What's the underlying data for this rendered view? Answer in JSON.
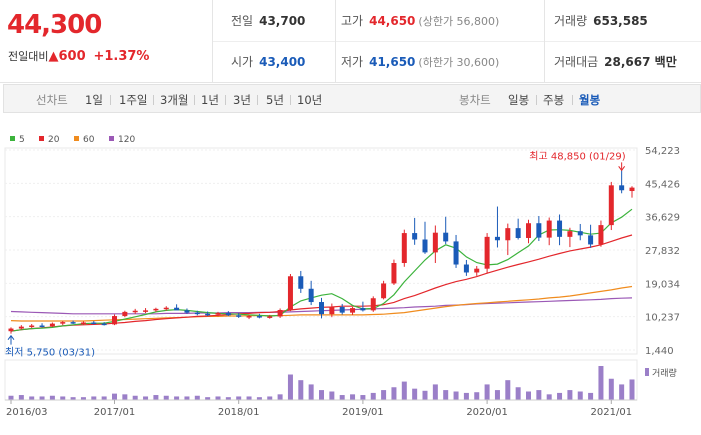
{
  "quote": {
    "price": "44,300",
    "change_label": "전일대비",
    "change_icon": "up-triangle-icon",
    "change_amount": "600",
    "change_percent": "+1.37%",
    "prev_close_label": "전일",
    "prev_close": "43,700",
    "high_label": "고가",
    "high": "44,650",
    "upper_limit": "(상한가 56,800)",
    "volume_label": "거래량",
    "volume": "653,585",
    "open_label": "시가",
    "open": "43,400",
    "low_label": "저가",
    "low": "41,650",
    "lower_limit": "(하한가 30,600)",
    "amount_label": "거래대금",
    "amount": "28,667 백만"
  },
  "toolbar": {
    "line_header": "선차트",
    "line_periods": [
      "1일",
      "1주일",
      "3개월",
      "1년",
      "3년",
      "5년",
      "10년"
    ],
    "candle_header": "봉차트",
    "candle_periods": [
      "일봉",
      "주봉",
      "월봉"
    ],
    "selected": "월봉"
  },
  "colors": {
    "up": "#e3272c",
    "down": "#1a5bb8",
    "ma5": "#3cb33c",
    "ma20": "#e3272c",
    "ma60": "#f08c1e",
    "ma120": "#9b59b6",
    "volume": "#9b7fc8"
  },
  "chart_data": {
    "type": "candlestick",
    "legend": [
      {
        "name": "5",
        "color": "#3cb33c"
      },
      {
        "name": "20",
        "color": "#e3272c"
      },
      {
        "name": "60",
        "color": "#f08c1e"
      },
      {
        "name": "120",
        "color": "#9b59b6"
      }
    ],
    "y_ticks": [
      "54,223",
      "45,426",
      "36,629",
      "27,832",
      "19,034",
      "10,237",
      "1,440"
    ],
    "ylim": [
      1440,
      54223
    ],
    "x_ticks": [
      "2016/03",
      "2017/01",
      "2018/01",
      "2019/01",
      "2020/01",
      "2021/01"
    ],
    "x_tick_month_index": [
      0,
      10,
      22,
      34,
      46,
      58
    ],
    "high_annotation": "최고 48,850 (01/29)",
    "low_annotation": "최저 5,750 (03/31)",
    "volume_label": "거래량",
    "ohlc": [
      [
        6400,
        7400,
        5750,
        7100
      ],
      [
        7100,
        8000,
        6800,
        7600
      ],
      [
        7600,
        8300,
        7200,
        7900
      ],
      [
        7900,
        8500,
        7400,
        7700
      ],
      [
        7700,
        8700,
        7500,
        8400
      ],
      [
        8400,
        9100,
        8000,
        8800
      ],
      [
        8800,
        9200,
        8300,
        8500
      ],
      [
        8500,
        9000,
        8100,
        8700
      ],
      [
        8700,
        9100,
        8200,
        8400
      ],
      [
        8400,
        8800,
        7900,
        8200
      ],
      [
        8200,
        10800,
        8000,
        10400
      ],
      [
        10400,
        11800,
        10100,
        11500
      ],
      [
        11500,
        12300,
        11000,
        11800
      ],
      [
        11800,
        12500,
        11200,
        11900
      ],
      [
        11900,
        12600,
        11500,
        12300
      ],
      [
        12300,
        13000,
        11800,
        12600
      ],
      [
        12600,
        13500,
        12000,
        11900
      ],
      [
        11900,
        12400,
        11000,
        11300
      ],
      [
        11300,
        11800,
        10600,
        11000
      ],
      [
        11000,
        11600,
        10400,
        10800
      ],
      [
        10800,
        11500,
        10300,
        11200
      ],
      [
        11200,
        11700,
        10400,
        10600
      ],
      [
        10600,
        11200,
        9900,
        10200
      ],
      [
        10200,
        10800,
        9600,
        10400
      ],
      [
        10400,
        11000,
        9800,
        10100
      ],
      [
        10100,
        10700,
        9700,
        10300
      ],
      [
        10300,
        12400,
        9900,
        12000
      ],
      [
        12000,
        21500,
        11700,
        20900
      ],
      [
        20900,
        22300,
        16500,
        17600
      ],
      [
        17600,
        19700,
        13300,
        14100
      ],
      [
        14100,
        15200,
        9800,
        10900
      ],
      [
        10900,
        13700,
        10100,
        12800
      ],
      [
        12800,
        13600,
        10800,
        11300
      ],
      [
        11300,
        12800,
        10700,
        12500
      ],
      [
        12500,
        14200,
        11600,
        11900
      ],
      [
        11900,
        15600,
        11500,
        15100
      ],
      [
        15100,
        19700,
        14800,
        19000
      ],
      [
        19000,
        25300,
        18600,
        24400
      ],
      [
        24400,
        33200,
        23400,
        32300
      ],
      [
        32300,
        36300,
        29200,
        30600
      ],
      [
        30600,
        35300,
        26800,
        27200
      ],
      [
        27200,
        34300,
        24400,
        32400
      ],
      [
        32400,
        36600,
        29400,
        30100
      ],
      [
        30100,
        31800,
        23100,
        24000
      ],
      [
        24000,
        25200,
        21000,
        21900
      ],
      [
        21900,
        23600,
        21000,
        22900
      ],
      [
        22900,
        32300,
        21600,
        31300
      ],
      [
        31300,
        39300,
        28500,
        30400
      ],
      [
        30400,
        34800,
        26500,
        33600
      ],
      [
        33600,
        36100,
        30600,
        31000
      ],
      [
        31000,
        35800,
        29600,
        34900
      ],
      [
        34900,
        36800,
        30200,
        31100
      ],
      [
        31100,
        36400,
        29100,
        35600
      ],
      [
        35600,
        37200,
        29100,
        31300
      ],
      [
        31300,
        33700,
        28600,
        32800
      ],
      [
        32800,
        34700,
        30400,
        31700
      ],
      [
        31700,
        34500,
        28400,
        29300
      ],
      [
        29300,
        35600,
        28700,
        34400
      ],
      [
        34400,
        45800,
        33100,
        44900
      ],
      [
        44900,
        48850,
        42800,
        43600
      ],
      [
        43400,
        44650,
        41650,
        44300
      ]
    ],
    "ma5": [
      6400,
      6800,
      7100,
      7200,
      7400,
      7800,
      8100,
      8400,
      8500,
      8500,
      9000,
      9600,
      10200,
      10800,
      11500,
      11900,
      12100,
      11900,
      11600,
      11300,
      11100,
      11000,
      10900,
      10700,
      10600,
      10400,
      10600,
      12800,
      14400,
      15200,
      15900,
      16300,
      15000,
      13200,
      12300,
      12400,
      13700,
      16000,
      19400,
      22300,
      25200,
      27600,
      29200,
      28300,
      26000,
      24500,
      23900,
      24100,
      25300,
      27100,
      28900,
      31800,
      33100,
      33200,
      33000,
      32500,
      32000,
      32300,
      35000,
      36500,
      38600
    ],
    "ma20": [
      6400,
      6800,
      7100,
      7300,
      7500,
      7800,
      8000,
      8100,
      8200,
      8300,
      8500,
      8700,
      9000,
      9200,
      9500,
      9700,
      9900,
      10100,
      10300,
      10400,
      10600,
      10800,
      11000,
      11100,
      11300,
      11400,
      11600,
      12000,
      12300,
      12500,
      12700,
      12800,
      13000,
      13000,
      13000,
      13100,
      13400,
      14000,
      15000,
      15800,
      16800,
      17800,
      18700,
      19500,
      20100,
      20800,
      21700,
      22500,
      23300,
      24000,
      24700,
      25400,
      26200,
      26900,
      27600,
      28100,
      28600,
      29200,
      30100,
      31000,
      31800
    ],
    "ma60": [
      9200,
      9100,
      9100,
      9100,
      9100,
      9100,
      9100,
      9100,
      9200,
      9300,
      9400,
      9500,
      9600,
      9700,
      9800,
      9900,
      10000,
      10100,
      10200,
      10300,
      10300,
      10400,
      10400,
      10500,
      10500,
      10500,
      10500,
      10600,
      10700,
      10700,
      10700,
      10700,
      10700,
      10700,
      10700,
      10800,
      10900,
      11100,
      11300,
      11700,
      12100,
      12500,
      12900,
      13200,
      13500,
      13700,
      13900,
      14100,
      14300,
      14500,
      14700,
      14900,
      15200,
      15400,
      15700,
      16100,
      16500,
      16900,
      17300,
      17800,
      18200
    ],
    "ma120": [
      11600,
      11500,
      11400,
      11300,
      11200,
      11100,
      11000,
      11000,
      11000,
      11000,
      11000,
      11000,
      11000,
      11000,
      11000,
      11100,
      11100,
      11100,
      11200,
      11200,
      11200,
      11300,
      11300,
      11300,
      11400,
      11400,
      11400,
      11500,
      11600,
      11700,
      11800,
      11900,
      12000,
      12100,
      12200,
      12300,
      12400,
      12500,
      12600,
      12800,
      12900,
      13000,
      13200,
      13300,
      13400,
      13600,
      13700,
      13800,
      13900,
      14000,
      14100,
      14200,
      14300,
      14400,
      14500,
      14600,
      14700,
      14800,
      15000,
      15100,
      15200
    ],
    "volume": [
      6,
      7,
      5,
      5,
      6,
      5,
      4,
      4,
      5,
      5,
      9,
      8,
      6,
      5,
      7,
      6,
      5,
      5,
      6,
      4,
      5,
      4,
      5,
      5,
      4,
      5,
      8,
      36,
      28,
      22,
      14,
      12,
      7,
      8,
      7,
      10,
      14,
      18,
      26,
      16,
      13,
      22,
      14,
      12,
      10,
      11,
      22,
      14,
      28,
      18,
      12,
      14,
      8,
      10,
      14,
      12,
      10,
      48,
      30,
      22,
      29
    ],
    "volume_max_note": "relative bar heights"
  }
}
